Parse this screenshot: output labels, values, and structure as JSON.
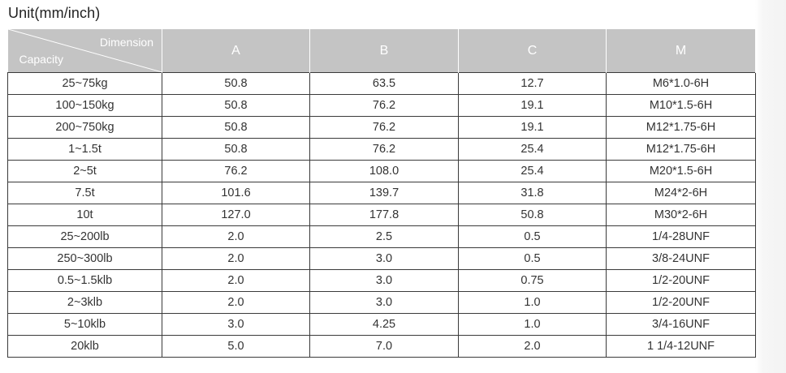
{
  "unit_caption": "Unit(mm/inch)",
  "table": {
    "corner": {
      "top_label": "Dimension",
      "bottom_label": "Capacity"
    },
    "headers": [
      "A",
      "B",
      "C",
      "M"
    ],
    "rows": [
      {
        "capacity": "25~75kg",
        "a": "50.8",
        "b": "63.5",
        "c": "12.7",
        "m": "M6*1.0-6H"
      },
      {
        "capacity": "100~150kg",
        "a": "50.8",
        "b": "76.2",
        "c": "19.1",
        "m": "M10*1.5-6H"
      },
      {
        "capacity": "200~750kg",
        "a": "50.8",
        "b": "76.2",
        "c": "19.1",
        "m": "M12*1.75-6H"
      },
      {
        "capacity": "1~1.5t",
        "a": "50.8",
        "b": "76.2",
        "c": "25.4",
        "m": "M12*1.75-6H"
      },
      {
        "capacity": "2~5t",
        "a": "76.2",
        "b": "108.0",
        "c": "25.4",
        "m": "M20*1.5-6H"
      },
      {
        "capacity": "7.5t",
        "a": "101.6",
        "b": "139.7",
        "c": "31.8",
        "m": "M24*2-6H"
      },
      {
        "capacity": "10t",
        "a": "127.0",
        "b": "177.8",
        "c": "50.8",
        "m": "M30*2-6H"
      },
      {
        "capacity": "25~200lb",
        "a": "2.0",
        "b": "2.5",
        "c": "0.5",
        "m": "1/4-28UNF"
      },
      {
        "capacity": "250~300lb",
        "a": "2.0",
        "b": "3.0",
        "c": "0.5",
        "m": "3/8-24UNF"
      },
      {
        "capacity": "0.5~1.5klb",
        "a": "2.0",
        "b": "3.0",
        "c": "0.75",
        "m": "1/2-20UNF"
      },
      {
        "capacity": "2~3klb",
        "a": "2.0",
        "b": "3.0",
        "c": "1.0",
        "m": "1/2-20UNF"
      },
      {
        "capacity": "5~10klb",
        "a": "3.0",
        "b": "4.25",
        "c": "1.0",
        "m": "3/4-16UNF"
      },
      {
        "capacity": "20klb",
        "a": "5.0",
        "b": "7.0",
        "c": "2.0",
        "m": "1 1/4-12UNF"
      }
    ]
  },
  "colors": {
    "header_background": "#c4c4c4",
    "header_text": "#ffffff",
    "cell_border": "#3a3a3a",
    "body_text": "#333333"
  }
}
